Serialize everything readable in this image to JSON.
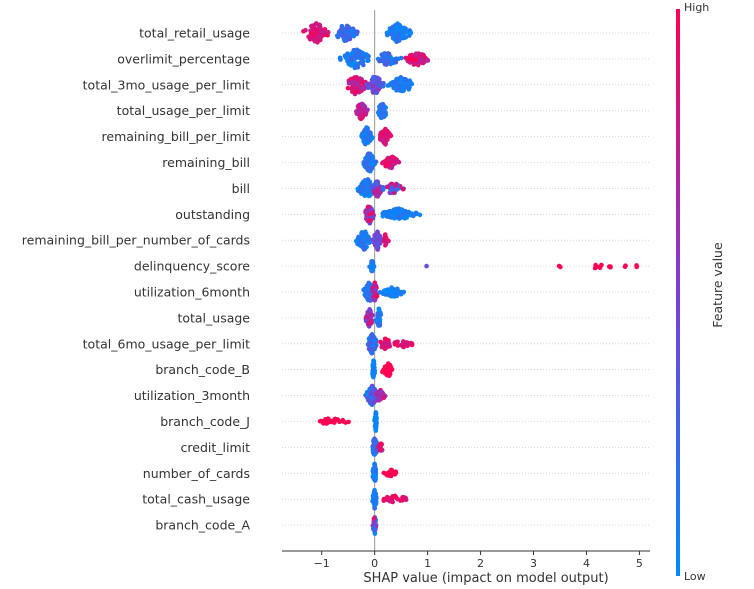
{
  "chart_data": {
    "type": "scatter",
    "subtype": "shap-beeswarm-summary",
    "xlabel": "SHAP value (impact on model output)",
    "xlim": [
      -1.75,
      5.2
    ],
    "xticks": [
      -1,
      0,
      1,
      2,
      3,
      4,
      5
    ],
    "xtick_labels": [
      "−1",
      "0",
      "1",
      "2",
      "3",
      "4",
      "5"
    ],
    "zero_line": true,
    "grid": false,
    "colorbar": {
      "label": "Feature value",
      "high_label": "High",
      "low_label": "Low",
      "low_color": "#008bfb",
      "high_color": "#ff0052",
      "placement": "right"
    },
    "features": [
      {
        "name": "total_retail_usage",
        "range": [
          -1.45,
          0.95
        ],
        "clusters": [
          {
            "x": -1.1,
            "spread": 0.32,
            "count": 80,
            "height": 1.0,
            "color": [
              0.75,
              1.0
            ]
          },
          {
            "x": -0.55,
            "spread": 0.28,
            "count": 60,
            "height": 0.9,
            "color": [
              0.05,
              0.4
            ]
          },
          {
            "x": 0.45,
            "spread": 0.3,
            "count": 90,
            "height": 1.0,
            "color": [
              0.0,
              0.2
            ]
          }
        ]
      },
      {
        "name": "overlimit_percentage",
        "range": [
          -0.95,
          1.2
        ],
        "clusters": [
          {
            "x": -0.35,
            "spread": 0.35,
            "count": 90,
            "height": 1.0,
            "color": [
              0.0,
              0.25
            ]
          },
          {
            "x": 0.25,
            "spread": 0.3,
            "count": 50,
            "height": 0.7,
            "color": [
              0.0,
              0.4
            ]
          },
          {
            "x": 0.8,
            "spread": 0.3,
            "count": 60,
            "height": 0.7,
            "color": [
              0.7,
              1.0
            ]
          }
        ]
      },
      {
        "name": "total_3mo_usage_per_limit",
        "range": [
          -0.72,
          0.95
        ],
        "clusters": [
          {
            "x": -0.35,
            "spread": 0.28,
            "count": 80,
            "height": 1.0,
            "color": [
              0.6,
              1.0
            ]
          },
          {
            "x": 0.0,
            "spread": 0.2,
            "count": 70,
            "height": 1.0,
            "color": [
              0.2,
              0.6
            ]
          },
          {
            "x": 0.5,
            "spread": 0.35,
            "count": 70,
            "height": 0.8,
            "color": [
              0.0,
              0.2
            ]
          }
        ]
      },
      {
        "name": "total_usage_per_limit",
        "range": [
          -0.45,
          0.3
        ],
        "clusters": [
          {
            "x": -0.25,
            "spread": 0.14,
            "count": 70,
            "height": 0.9,
            "color": [
              0.5,
              1.0
            ]
          },
          {
            "x": 0.15,
            "spread": 0.12,
            "count": 50,
            "height": 1.0,
            "color": [
              0.0,
              0.25
            ]
          }
        ]
      },
      {
        "name": "remaining_bill_per_limit",
        "range": [
          -0.3,
          0.4
        ],
        "clusters": [
          {
            "x": -0.15,
            "spread": 0.12,
            "count": 70,
            "height": 1.0,
            "color": [
              0.0,
              0.25
            ]
          },
          {
            "x": 0.2,
            "spread": 0.15,
            "count": 60,
            "height": 0.8,
            "color": [
              0.75,
              1.0
            ]
          }
        ]
      },
      {
        "name": "remaining_bill",
        "range": [
          -0.3,
          0.55
        ],
        "clusters": [
          {
            "x": -0.1,
            "spread": 0.15,
            "count": 90,
            "height": 1.0,
            "color": [
              0.0,
              0.3
            ]
          },
          {
            "x": 0.3,
            "spread": 0.2,
            "count": 50,
            "height": 0.7,
            "color": [
              0.7,
              1.0
            ]
          }
        ]
      },
      {
        "name": "bill",
        "range": [
          -0.45,
          0.65
        ],
        "clusters": [
          {
            "x": -0.15,
            "spread": 0.22,
            "count": 90,
            "height": 1.0,
            "color": [
              0.0,
              0.25
            ]
          },
          {
            "x": 0.05,
            "spread": 0.12,
            "count": 40,
            "height": 0.9,
            "color": [
              0.3,
              0.8
            ]
          },
          {
            "x": 0.35,
            "spread": 0.25,
            "count": 40,
            "height": 0.6,
            "color": [
              0.0,
              1.0
            ]
          }
        ]
      },
      {
        "name": "outstanding",
        "range": [
          -0.25,
          0.95
        ],
        "clusters": [
          {
            "x": -0.1,
            "spread": 0.12,
            "count": 60,
            "height": 1.0,
            "color": [
              0.3,
              1.0
            ]
          },
          {
            "x": 0.45,
            "spread": 0.45,
            "count": 90,
            "height": 0.6,
            "color": [
              0.0,
              0.2
            ]
          }
        ]
      },
      {
        "name": "remaining_bill_per_number_of_cards",
        "range": [
          -0.45,
          0.28
        ],
        "clusters": [
          {
            "x": -0.2,
            "spread": 0.2,
            "count": 70,
            "height": 1.0,
            "color": [
              0.0,
              0.25
            ]
          },
          {
            "x": 0.05,
            "spread": 0.1,
            "count": 40,
            "height": 1.0,
            "color": [
              0.2,
              0.6
            ]
          },
          {
            "x": 0.2,
            "spread": 0.07,
            "count": 20,
            "height": 0.6,
            "color": [
              0.8,
              1.0
            ]
          }
        ]
      },
      {
        "name": "delinquency_score",
        "range": [
          -0.12,
          4.95
        ],
        "clusters": [
          {
            "x": -0.05,
            "spread": 0.05,
            "count": 35,
            "height": 0.6,
            "color": [
              0.0,
              0.2
            ]
          },
          {
            "x": 3.5,
            "spread": 0.03,
            "count": 2,
            "height": 0.2,
            "color": [
              1.0,
              1.0
            ]
          },
          {
            "x": 4.2,
            "spread": 0.15,
            "count": 5,
            "height": 0.3,
            "color": [
              1.0,
              1.0
            ]
          },
          {
            "x": 4.45,
            "spread": 0.05,
            "count": 3,
            "height": 0.2,
            "color": [
              1.0,
              1.0
            ]
          },
          {
            "x": 4.75,
            "spread": 0.05,
            "count": 2,
            "height": 0.2,
            "color": [
              1.0,
              1.0
            ]
          },
          {
            "x": 4.95,
            "spread": 0.03,
            "count": 2,
            "height": 0.2,
            "color": [
              1.0,
              1.0
            ]
          }
        ],
        "points": [
          {
            "x": 0.98,
            "color": 0.4
          }
        ]
      },
      {
        "name": "utilization_6month",
        "range": [
          -0.3,
          0.65
        ],
        "clusters": [
          {
            "x": -0.1,
            "spread": 0.15,
            "count": 70,
            "height": 1.0,
            "color": [
              0.0,
              0.3
            ]
          },
          {
            "x": 0.0,
            "spread": 0.08,
            "count": 40,
            "height": 1.0,
            "color": [
              0.5,
              1.0
            ]
          },
          {
            "x": 0.35,
            "spread": 0.3,
            "count": 40,
            "height": 0.5,
            "color": [
              0.0,
              0.2
            ]
          }
        ]
      },
      {
        "name": "total_usage",
        "range": [
          -0.22,
          0.15
        ],
        "clusters": [
          {
            "x": -0.1,
            "spread": 0.1,
            "count": 50,
            "height": 0.9,
            "color": [
              0.4,
              0.9
            ]
          },
          {
            "x": 0.08,
            "spread": 0.07,
            "count": 40,
            "height": 1.0,
            "color": [
              0.0,
              0.3
            ]
          }
        ]
      },
      {
        "name": "total_6mo_usage_per_limit",
        "range": [
          -0.2,
          0.8
        ],
        "clusters": [
          {
            "x": -0.05,
            "spread": 0.12,
            "count": 80,
            "height": 1.0,
            "color": [
              0.0,
              0.4
            ]
          },
          {
            "x": 0.2,
            "spread": 0.15,
            "count": 25,
            "height": 0.6,
            "color": [
              0.7,
              1.0
            ]
          },
          {
            "x": 0.55,
            "spread": 0.25,
            "count": 25,
            "height": 0.4,
            "color": [
              0.8,
              1.0
            ]
          }
        ]
      },
      {
        "name": "branch_code_B",
        "range": [
          -0.05,
          0.45
        ],
        "clusters": [
          {
            "x": -0.02,
            "spread": 0.04,
            "count": 40,
            "height": 1.0,
            "color": [
              0.0,
              0.1
            ]
          },
          {
            "x": 0.25,
            "spread": 0.18,
            "count": 40,
            "height": 0.7,
            "color": [
              1.0,
              1.0
            ]
          }
        ]
      },
      {
        "name": "utilization_3month",
        "range": [
          -0.25,
          0.25
        ],
        "clusters": [
          {
            "x": -0.05,
            "spread": 0.15,
            "count": 80,
            "height": 1.0,
            "color": [
              0.0,
              0.5
            ]
          },
          {
            "x": 0.1,
            "spread": 0.12,
            "count": 40,
            "height": 0.6,
            "color": [
              0.4,
              1.0
            ]
          }
        ]
      },
      {
        "name": "branch_code_J",
        "range": [
          -1.15,
          0.05
        ],
        "clusters": [
          {
            "x": 0.02,
            "spread": 0.03,
            "count": 40,
            "height": 1.0,
            "color": [
              0.0,
              0.1
            ]
          },
          {
            "x": -0.8,
            "spread": 0.35,
            "count": 25,
            "height": 0.4,
            "color": [
              1.0,
              1.0
            ]
          }
        ]
      },
      {
        "name": "credit_limit",
        "range": [
          -0.1,
          0.2
        ],
        "clusters": [
          {
            "x": 0.0,
            "spread": 0.08,
            "count": 60,
            "height": 1.0,
            "color": [
              0.0,
              0.4
            ]
          },
          {
            "x": 0.12,
            "spread": 0.08,
            "count": 15,
            "height": 0.4,
            "color": [
              0.6,
              1.0
            ]
          }
        ]
      },
      {
        "name": "number_of_cards",
        "range": [
          -0.05,
          0.48
        ],
        "clusters": [
          {
            "x": 0.0,
            "spread": 0.05,
            "count": 50,
            "height": 1.0,
            "color": [
              0.0,
              0.2
            ]
          },
          {
            "x": 0.3,
            "spread": 0.18,
            "count": 25,
            "height": 0.4,
            "color": [
              1.0,
              1.0
            ]
          }
        ]
      },
      {
        "name": "total_cash_usage",
        "range": [
          -0.05,
          0.8
        ],
        "clusters": [
          {
            "x": 0.0,
            "spread": 0.05,
            "count": 50,
            "height": 1.0,
            "color": [
              0.0,
              0.2
            ]
          },
          {
            "x": 0.4,
            "spread": 0.4,
            "count": 25,
            "height": 0.35,
            "color": [
              0.8,
              1.0
            ]
          }
        ]
      },
      {
        "name": "branch_code_A",
        "range": [
          -0.05,
          0.05
        ],
        "clusters": [
          {
            "x": 0.0,
            "spread": 0.04,
            "count": 40,
            "height": 1.0,
            "color": [
              0.0,
              1.0
            ]
          }
        ]
      }
    ]
  }
}
